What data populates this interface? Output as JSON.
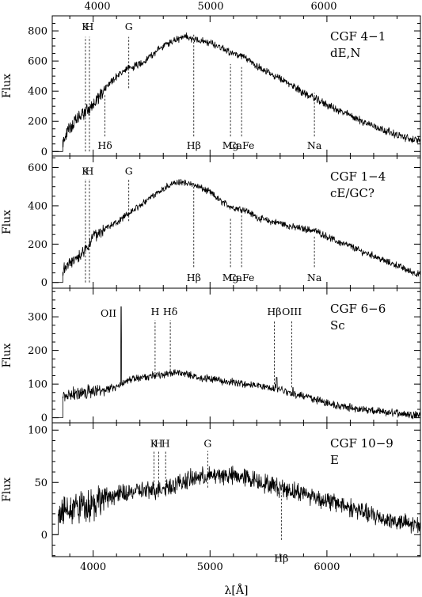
{
  "chart_data": [
    {
      "type": "line",
      "panel_id": "cgf-4-1",
      "name_line1": "CGF 4−1",
      "name_line2": "dE,N",
      "ylabel": "Flux",
      "xlabel": "",
      "xlim": [
        3650,
        6800
      ],
      "ylim": [
        -30,
        900
      ],
      "yticks": [
        0,
        200,
        400,
        600,
        800
      ],
      "yminor": 50,
      "top_ticks": true,
      "noise": 20,
      "baseline_y": 0,
      "x": [
        3740,
        3800,
        3900,
        3950,
        4000,
        4100,
        4200,
        4300,
        4400,
        4500,
        4600,
        4700,
        4800,
        4900,
        5000,
        5100,
        5200,
        5300,
        5400,
        5500,
        5600,
        5700,
        5800,
        5900,
        6000,
        6100,
        6200,
        6300,
        6400,
        6500,
        6600,
        6700,
        6800
      ],
      "y": [
        60,
        160,
        240,
        280,
        300,
        420,
        500,
        550,
        580,
        640,
        700,
        740,
        760,
        740,
        720,
        690,
        650,
        620,
        570,
        520,
        480,
        440,
        390,
        350,
        310,
        270,
        240,
        200,
        170,
        140,
        110,
        85,
        70
      ],
      "lines": [
        {
          "label": "K",
          "x": 3934,
          "from": 0,
          "to": 760,
          "label_y": 805,
          "label_pos": "above"
        },
        {
          "label": "H",
          "x": 3968,
          "from": 0,
          "to": 760,
          "label_y": 805,
          "label_pos": "above"
        },
        {
          "label": "G",
          "x": 4305,
          "from": 420,
          "to": 760,
          "label_y": 805,
          "label_pos": "above"
        },
        {
          "label": "Hδ",
          "x": 4101,
          "from": 100,
          "to": 380,
          "label_y": 60,
          "label_pos": "below"
        },
        {
          "label": "Hβ",
          "x": 4861,
          "from": 100,
          "to": 780,
          "label_y": 60,
          "label_pos": "below"
        },
        {
          "label": "Mg",
          "x": 5175,
          "from": 100,
          "to": 580,
          "label_y": 60,
          "label_pos": "below"
        },
        {
          "label": "CaFe",
          "x": 5270,
          "from": 100,
          "to": 560,
          "label_y": 60,
          "label_pos": "below"
        },
        {
          "label": "Na",
          "x": 5893,
          "from": 100,
          "to": 390,
          "label_y": 60,
          "label_pos": "below"
        }
      ]
    },
    {
      "type": "line",
      "panel_id": "cgf-1-4",
      "name_line1": "CGF 1−4",
      "name_line2": "cE/GC?",
      "ylabel": "Flux",
      "xlabel": "",
      "xlim": [
        3650,
        6800
      ],
      "ylim": [
        -30,
        660
      ],
      "yticks": [
        0,
        200,
        400,
        600
      ],
      "yminor": 50,
      "top_ticks": false,
      "noise": 14,
      "baseline_y": 0,
      "x": [
        3740,
        3800,
        3900,
        3950,
        4000,
        4100,
        4200,
        4300,
        4400,
        4500,
        4600,
        4700,
        4800,
        4900,
        5000,
        5100,
        5200,
        5300,
        5400,
        5500,
        5600,
        5700,
        5800,
        5900,
        6000,
        6100,
        6200,
        6300,
        6400,
        6500,
        6600,
        6700,
        6800
      ],
      "y": [
        70,
        100,
        150,
        180,
        240,
        280,
        310,
        360,
        400,
        450,
        490,
        520,
        520,
        500,
        470,
        420,
        390,
        380,
        340,
        320,
        310,
        290,
        280,
        270,
        240,
        210,
        190,
        160,
        140,
        110,
        90,
        60,
        40
      ],
      "lines": [
        {
          "label": "K",
          "x": 3934,
          "from": 0,
          "to": 540,
          "label_y": 562,
          "label_pos": "above"
        },
        {
          "label": "H",
          "x": 3968,
          "from": 0,
          "to": 540,
          "label_y": 562,
          "label_pos": "above"
        },
        {
          "label": "G",
          "x": 4305,
          "from": 320,
          "to": 540,
          "label_y": 562,
          "label_pos": "above"
        },
        {
          "label": "Hβ",
          "x": 4861,
          "from": 80,
          "to": 520,
          "label_y": 40,
          "label_pos": "below"
        },
        {
          "label": "Mg",
          "x": 5175,
          "from": 80,
          "to": 340,
          "label_y": 40,
          "label_pos": "below"
        },
        {
          "label": "CaFe",
          "x": 5270,
          "from": 80,
          "to": 360,
          "label_y": 40,
          "label_pos": "below"
        },
        {
          "label": "Na",
          "x": 5893,
          "from": 80,
          "to": 240,
          "label_y": 40,
          "label_pos": "below"
        }
      ]
    },
    {
      "type": "line",
      "panel_id": "cgf-6-6",
      "name_line1": "CGF 6−6",
      "name_line2": "Sc",
      "ylabel": "Flux",
      "xlabel": "",
      "xlim": [
        3650,
        6800
      ],
      "ylim": [
        -15,
        385
      ],
      "yticks": [
        0,
        100,
        200,
        300
      ],
      "yminor": 25,
      "top_ticks": false,
      "noise": 9,
      "baseline_y": 0,
      "x": [
        3740,
        3800,
        3900,
        4000,
        4100,
        4200,
        4300,
        4400,
        4500,
        4600,
        4700,
        4800,
        4900,
        5000,
        5100,
        5200,
        5300,
        5400,
        5500,
        5600,
        5700,
        5800,
        5900,
        6000,
        6100,
        6200,
        6300,
        6400,
        6500,
        6600,
        6700,
        6800
      ],
      "y": [
        60,
        70,
        75,
        80,
        85,
        90,
        110,
        120,
        125,
        130,
        135,
        130,
        120,
        115,
        110,
        105,
        100,
        95,
        90,
        85,
        70,
        65,
        55,
        45,
        35,
        30,
        25,
        20,
        15,
        15,
        10,
        10
      ],
      "spikes": [
        {
          "x": 4240,
          "y": 330
        },
        {
          "x": 5570,
          "y": 120
        },
        {
          "x": 5710,
          "y": 90
        }
      ],
      "lines": [
        {
          "label": "OII",
          "x": 4240,
          "from": null,
          "to": null,
          "label_y": 310,
          "label_pos": "left"
        },
        {
          "label": "H",
          "x": 4530,
          "from": 130,
          "to": 290,
          "label_y": 305,
          "label_pos": "above"
        },
        {
          "label": "Hδ",
          "x": 4660,
          "from": 140,
          "to": 290,
          "label_y": 305,
          "label_pos": "above"
        },
        {
          "label": "Hβ",
          "x": 5550,
          "from": 100,
          "to": 290,
          "label_y": 305,
          "label_pos": "above"
        },
        {
          "label": "OIII",
          "x": 5700,
          "from": 90,
          "to": 290,
          "label_y": 305,
          "label_pos": "above"
        }
      ]
    },
    {
      "type": "line",
      "panel_id": "cgf-10-9",
      "name_line1": "CGF 10−9",
      "name_line2": "E",
      "ylabel": "Flux",
      "xlabel": "λ[Å]",
      "xlim": [
        3650,
        6800
      ],
      "ylim": [
        -21,
        107
      ],
      "yticks": [
        0,
        50,
        100
      ],
      "yminor": 10,
      "top_ticks": false,
      "noise": 7,
      "baseline_y": 0,
      "xticks": [
        4000,
        5000,
        6000
      ],
      "xminor": 200,
      "x": [
        3700,
        3800,
        3900,
        4000,
        4100,
        4200,
        4300,
        4400,
        4500,
        4600,
        4700,
        4800,
        4900,
        5000,
        5100,
        5200,
        5300,
        5400,
        5500,
        5600,
        5700,
        5800,
        5900,
        6000,
        6100,
        6200,
        6300,
        6400,
        6500,
        6600,
        6700,
        6800
      ],
      "y": [
        20,
        25,
        28,
        30,
        35,
        38,
        40,
        42,
        42,
        45,
        48,
        52,
        55,
        56,
        57,
        56,
        55,
        52,
        48,
        45,
        42,
        40,
        36,
        32,
        30,
        26,
        22,
        18,
        15,
        12,
        10,
        8
      ],
      "lines": [
        {
          "label": "K",
          "x": 4520,
          "from": 40,
          "to": 80,
          "label_y": 84,
          "label_pos": "above"
        },
        {
          "label": "H",
          "x": 4560,
          "from": 40,
          "to": 80,
          "label_y": 84,
          "label_pos": "above"
        },
        {
          "label": "H",
          "x": 4620,
          "from": 40,
          "to": 80,
          "label_y": 84,
          "label_pos": "above"
        },
        {
          "label": "G",
          "x": 4980,
          "from": 45,
          "to": 80,
          "label_y": 84,
          "label_pos": "above"
        },
        {
          "label": "Hβ",
          "x": 5610,
          "from": -5,
          "to": 40,
          "label_y": -20,
          "label_pos": "below"
        }
      ]
    }
  ],
  "top_axis_ticks": [
    "4000",
    "5000",
    "6000"
  ]
}
